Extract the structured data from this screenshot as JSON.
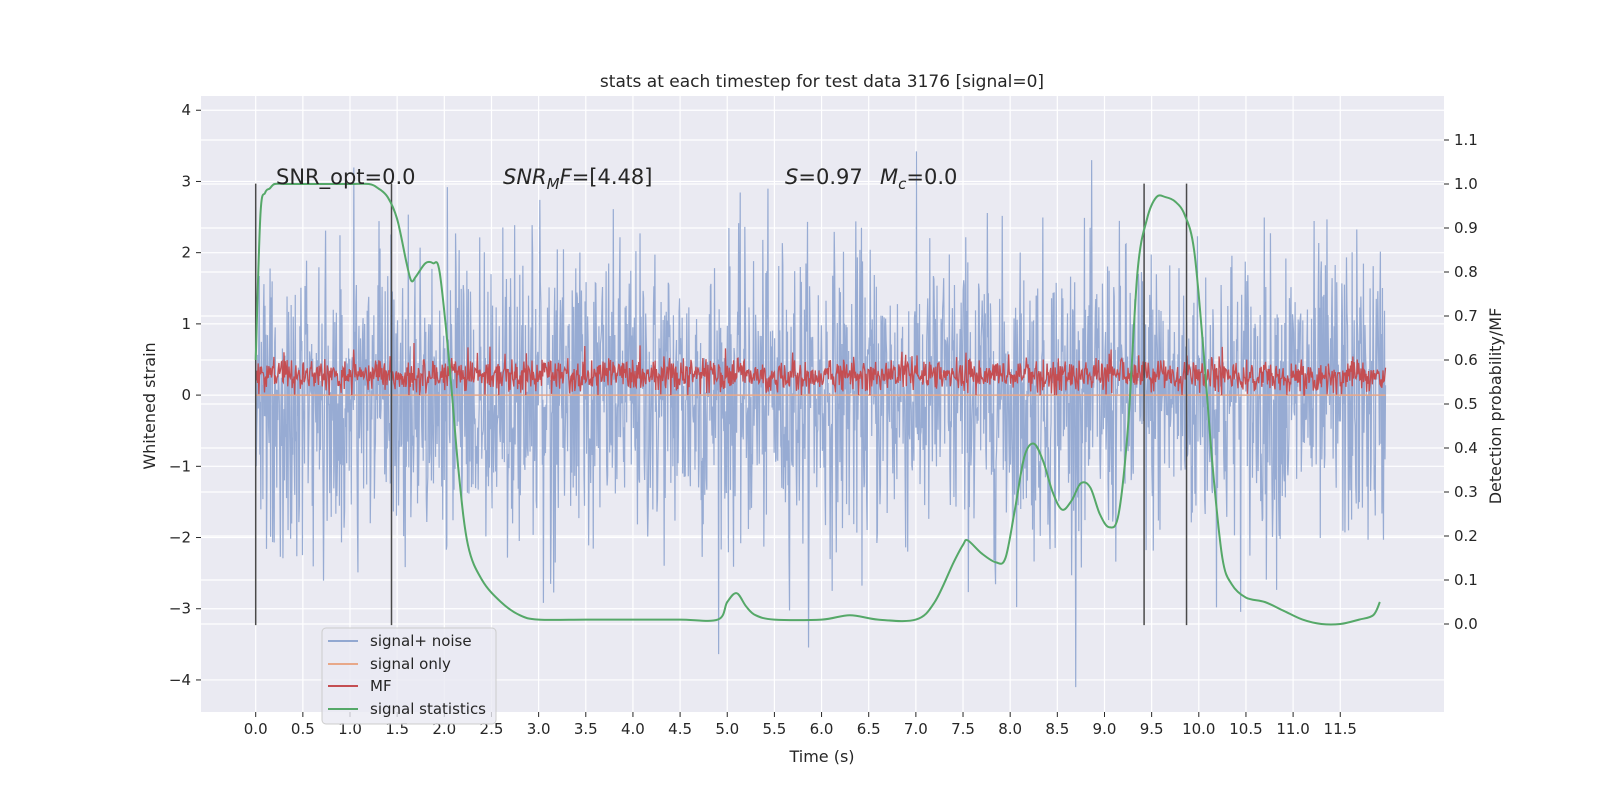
{
  "chart_data": {
    "type": "line",
    "title": "stats at each timestep for test data 3176 [signal=0]",
    "xlabel": "Time (s)",
    "ylabel_left": "Whitened strain",
    "ylabel_right": "Detection probability/MF",
    "xlim": [
      -0.58,
      12.6
    ],
    "ylim_left": [
      -4.45,
      4.2
    ],
    "ylim_right": [
      -0.2,
      1.2
    ],
    "x_ticks": [
      0.0,
      0.5,
      1.0,
      1.5,
      2.0,
      2.5,
      3.0,
      3.5,
      4.0,
      4.5,
      5.0,
      5.5,
      6.0,
      6.5,
      7.0,
      7.5,
      8.0,
      8.5,
      9.0,
      9.5,
      10.0,
      10.5,
      11.0,
      11.5
    ],
    "x_tick_labels": [
      "0.0",
      "0.5",
      "1.0",
      "1.5",
      "2.0",
      "2.5",
      "3.0",
      "3.5",
      "4.0",
      "4.5",
      "5.0",
      "5.5",
      "6.0",
      "6.5",
      "7.0",
      "7.5",
      "8.0",
      "8.5",
      "9.0",
      "9.5",
      "10.0",
      "10.5",
      "11.0",
      "11.5"
    ],
    "y_left_ticks": [
      -4,
      -3,
      -2,
      -1,
      0,
      1,
      2,
      3,
      4
    ],
    "y_left_tick_labels": [
      "−4",
      "−3",
      "−2",
      "−1",
      "0",
      "1",
      "2",
      "3",
      "4"
    ],
    "y_right_ticks": [
      0.0,
      0.1,
      0.2,
      0.3,
      0.4,
      0.5,
      0.6,
      0.7,
      0.8,
      0.9,
      1.0,
      1.1
    ],
    "y_right_tick_labels": [
      "0.0",
      "0.1",
      "0.2",
      "0.3",
      "0.4",
      "0.5",
      "0.6",
      "0.7",
      "0.8",
      "0.9",
      "1.0",
      "1.1"
    ],
    "grid": true,
    "legend_position": "lower-left",
    "annotations": {
      "snr_opt": "SNR_opt=0.0",
      "snr_mf": "[4.48]",
      "s_value": "0.97",
      "mc_value": "0.0"
    },
    "vertical_markers_x": [
      0.0,
      1.44,
      9.42,
      9.87
    ],
    "series": [
      {
        "name": "signal+ noise",
        "color": "#92a8d1",
        "axis": "left",
        "t_start": 0.0,
        "t_end": 11.98,
        "typical_amplitude": 1.1,
        "min": -4.1,
        "max": 3.85
      },
      {
        "name": "signal only",
        "color": "#e8a889",
        "axis": "left",
        "t_start": 0.0,
        "t_end": 11.98,
        "values": "flat at 0"
      },
      {
        "name": "MF",
        "color": "#c44e52",
        "axis": "left",
        "t_start": 0.0,
        "t_end": 11.98,
        "range": [
          0.0,
          0.9
        ]
      },
      {
        "name": "signal statistics",
        "color": "#55a868",
        "axis": "right",
        "x": [
          0.0,
          0.05,
          0.1,
          0.15,
          0.2,
          0.3,
          0.5,
          0.8,
          1.0,
          1.2,
          1.3,
          1.4,
          1.5,
          1.6,
          1.65,
          1.7,
          1.8,
          1.88,
          1.95,
          2.05,
          2.15,
          2.25,
          2.4,
          2.6,
          2.8,
          3.0,
          3.5,
          4.0,
          4.5,
          4.9,
          5.0,
          5.1,
          5.2,
          5.3,
          5.5,
          6.0,
          6.3,
          6.6,
          7.0,
          7.2,
          7.4,
          7.5,
          7.55,
          7.7,
          7.85,
          7.95,
          8.05,
          8.15,
          8.25,
          8.35,
          8.45,
          8.55,
          8.65,
          8.75,
          8.85,
          8.95,
          9.05,
          9.15,
          9.25,
          9.35,
          9.45,
          9.55,
          9.65,
          9.75,
          9.85,
          9.95,
          10.05,
          10.15,
          10.25,
          10.35,
          10.5,
          10.7,
          10.9,
          11.1,
          11.3,
          11.5,
          11.7,
          11.85,
          11.92
        ],
        "values": [
          0.6,
          0.93,
          0.98,
          0.99,
          1.0,
          1.0,
          1.0,
          1.0,
          1.0,
          1.0,
          0.99,
          0.97,
          0.92,
          0.82,
          0.78,
          0.79,
          0.82,
          0.82,
          0.8,
          0.6,
          0.35,
          0.18,
          0.1,
          0.05,
          0.02,
          0.01,
          0.01,
          0.01,
          0.01,
          0.01,
          0.05,
          0.07,
          0.04,
          0.02,
          0.01,
          0.01,
          0.02,
          0.01,
          0.01,
          0.05,
          0.14,
          0.18,
          0.19,
          0.16,
          0.14,
          0.15,
          0.26,
          0.38,
          0.41,
          0.37,
          0.3,
          0.26,
          0.28,
          0.32,
          0.31,
          0.25,
          0.22,
          0.25,
          0.45,
          0.8,
          0.92,
          0.97,
          0.97,
          0.96,
          0.93,
          0.85,
          0.62,
          0.35,
          0.15,
          0.09,
          0.06,
          0.05,
          0.03,
          0.01,
          0.0,
          0.0,
          0.01,
          0.02,
          0.05
        ]
      }
    ]
  }
}
